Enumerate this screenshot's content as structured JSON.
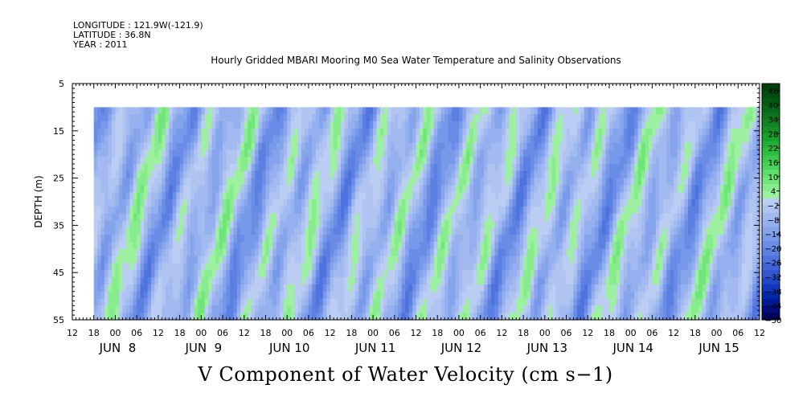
{
  "header": {
    "longitude": "LONGITUDE : 121.9W(-121.9)",
    "latitude": "LATITUDE : 36.8N",
    "year": "YEAR : 2011"
  },
  "chart_data": {
    "type": "heatmap",
    "title": "Hourly Gridded MBARI Mooring M0 Sea Water Temperature and Salinity Observations",
    "xlabel": "V Component of Water Velocity (cm s−1)",
    "ylabel": "DEPTH (m)",
    "y_ticks": [
      "5",
      "15",
      "25",
      "35",
      "45",
      "55"
    ],
    "ylim": [
      5,
      55
    ],
    "y_inverted": true,
    "x_hour_ticks": [
      "12",
      "18",
      "00",
      "06",
      "12",
      "18",
      "00",
      "06",
      "12",
      "18",
      "00",
      "06",
      "12",
      "18",
      "00",
      "06",
      "12",
      "18",
      "00",
      "06",
      "12",
      "18",
      "00",
      "06",
      "12",
      "18",
      "00",
      "06",
      "12",
      "18",
      "00",
      "06",
      "12"
    ],
    "x_day_labels": [
      "JUN  8",
      "JUN  9",
      "JUN 10",
      "JUN 11",
      "JUN 12",
      "JUN 13",
      "JUN 14",
      "JUN 15"
    ],
    "x_range": [
      "2011-06-07 12:00",
      "2011-06-15 12:00"
    ],
    "data_range": {
      "depth": [
        10,
        55
      ],
      "time_start": "2011-06-07 18:00"
    },
    "colorbar": {
      "labels": [
        "46",
        "40",
        "34",
        "28",
        "22",
        "16",
        "10",
        "4",
        "−2",
        "−8",
        "−14",
        "−20",
        "−26",
        "−32",
        "−38",
        "−44",
        "−50"
      ],
      "levels": [
        -50,
        -47,
        -44,
        -41,
        -38,
        -35,
        -32,
        -29,
        -26,
        -23,
        -20,
        -17,
        -14,
        -11,
        -8,
        -5,
        -2,
        1,
        4,
        7,
        10,
        13,
        16,
        19,
        22,
        25,
        28,
        31,
        34,
        37,
        40,
        43,
        46,
        49
      ],
      "colors": [
        "#00005a",
        "#000c7a",
        "#001a96",
        "#0028aa",
        "#1236be",
        "#2446c8",
        "#3256d2",
        "#4064d8",
        "#4e72de",
        "#5c80e2",
        "#6a8ce6",
        "#7898ea",
        "#86a4ec",
        "#94b0ee",
        "#a2baf0",
        "#b0c4f2",
        "#bccdf4",
        "#9cf0a0",
        "#86ec8c",
        "#70e67a",
        "#5cde68",
        "#48d458",
        "#38c84a",
        "#2cbc3e",
        "#22ae34",
        "#1aa02c",
        "#149226",
        "#0f8420",
        "#0b761b",
        "#086817",
        "#055a13",
        "#034d10",
        "#02400c"
      ]
    }
  }
}
